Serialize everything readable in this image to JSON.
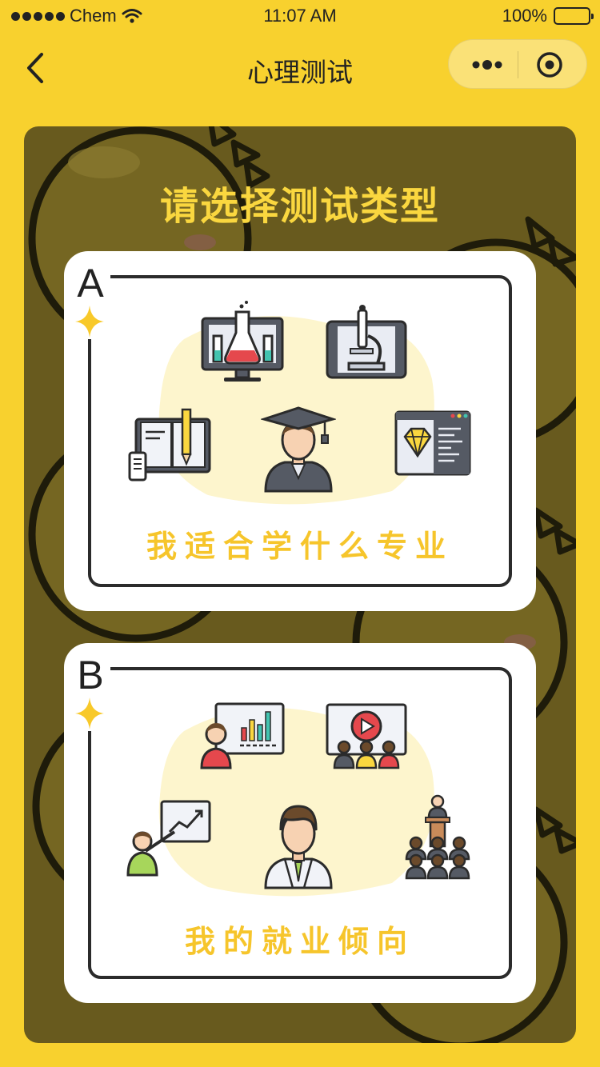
{
  "status_bar": {
    "carrier": "Chem",
    "time": "11:07 AM",
    "battery": "100%"
  },
  "nav": {
    "title": "心理测试",
    "back_icon": "chevron-left-icon",
    "more_icon": "more-dots-icon",
    "close_icon": "target-circle-icon"
  },
  "main": {
    "heading": "请选择测试类型",
    "cards": [
      {
        "letter": "A",
        "label": "我适合学什么专业",
        "icons": [
          "flask-monitor-icon",
          "microscope-tablet-icon",
          "notebook-pencil-icon",
          "graduate-student-icon",
          "diamond-code-window-icon"
        ]
      },
      {
        "letter": "B",
        "label": "我的就业倾向",
        "icons": [
          "presenter-chart-icon",
          "video-audience-icon",
          "pointer-growth-chart-icon",
          "businessman-icon",
          "speaker-crowd-icon"
        ]
      }
    ]
  },
  "colors": {
    "page_bg": "#f8d12e",
    "panel_bg": "#685a1e",
    "heading": "#fad73f",
    "label": "#f6c52b",
    "card_border": "#2b2b2b"
  }
}
